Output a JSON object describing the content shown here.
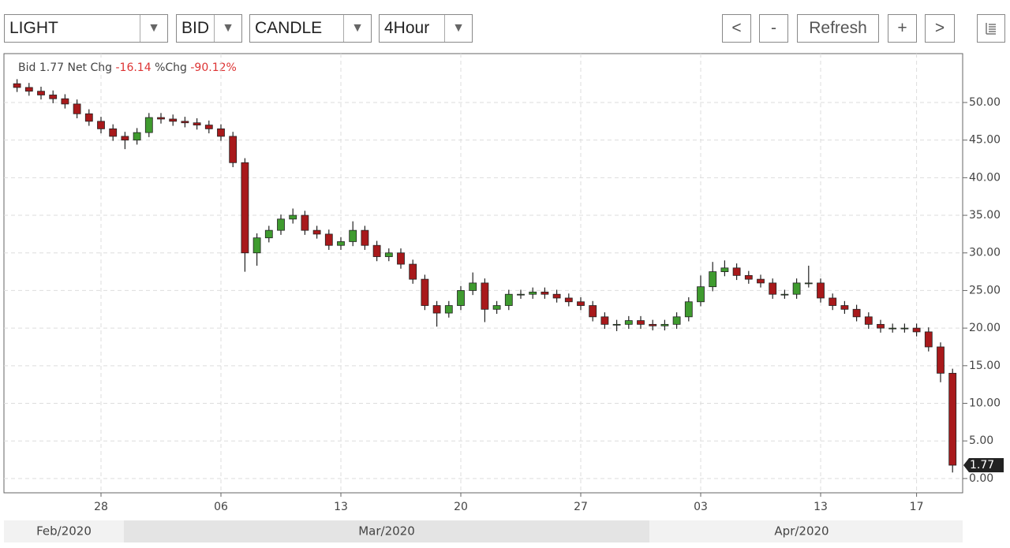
{
  "toolbar": {
    "symbol": "LIGHT",
    "side": "BID",
    "style": "CANDLE",
    "interval": "4Hour",
    "buttons": [
      "<",
      "-",
      "Refresh",
      "+",
      ">"
    ]
  },
  "chart_data": {
    "type": "candlestick",
    "info": {
      "bid_label": "Bid",
      "bid": "1.77",
      "chg_label": "Net Chg",
      "chg": "-16.14",
      "pct_label": "%Chg",
      "pct": "-90.12%"
    },
    "last_label": "1.77",
    "categories": [
      null,
      null,
      null,
      null,
      null,
      null,
      null,
      "28",
      null,
      null,
      null,
      null,
      null,
      null,
      null,
      null,
      null,
      "06",
      null,
      null,
      null,
      null,
      null,
      null,
      null,
      null,
      null,
      "13",
      null,
      null,
      null,
      null,
      null,
      null,
      null,
      null,
      null,
      "20",
      null,
      null,
      null,
      null,
      null,
      null,
      null,
      null,
      null,
      "27",
      null,
      null,
      null,
      null,
      null,
      null,
      null,
      null,
      null,
      "03",
      null,
      null,
      null,
      null,
      null,
      null,
      null,
      null,
      null,
      "13",
      null,
      null,
      null,
      null,
      null,
      null,
      null,
      "17",
      null,
      null,
      null
    ],
    "months": [
      "Feb/2020",
      "Mar/2020",
      "Apr/2020"
    ],
    "series": {
      "open": [
        52.5,
        52,
        51.5,
        51,
        50.5,
        49.8,
        48.5,
        47.5,
        46.5,
        45.5,
        45,
        46,
        48,
        47.8,
        47.5,
        47.3,
        47,
        46.5,
        45.5,
        42,
        30,
        32,
        33,
        34.5,
        35,
        33,
        32.5,
        31,
        31.5,
        33,
        31,
        29.5,
        30,
        28.5,
        26.5,
        23,
        22,
        23,
        25,
        26,
        22.5,
        23,
        24.5,
        24.5,
        24.8,
        24.5,
        24,
        23.5,
        23,
        21.5,
        20.5,
        20.5,
        21,
        20.5,
        20.3,
        20.5,
        21.5,
        23.5,
        25.5,
        27.5,
        28,
        27,
        26.5,
        26,
        24.5,
        24.5,
        26,
        26,
        24,
        23,
        22.5,
        21.5,
        20.5,
        20,
        20,
        20,
        19.5,
        17.5,
        14
      ],
      "high": [
        53.1,
        52.6,
        52.1,
        51.6,
        51.1,
        50.4,
        49.1,
        48.1,
        47.1,
        46.1,
        46.6,
        48.6,
        48.6,
        48.4,
        48.1,
        47.9,
        47.6,
        47.1,
        46.1,
        42.6,
        32.6,
        33.6,
        35.1,
        35.9,
        35.6,
        33.6,
        33.1,
        32.1,
        34.2,
        33.6,
        31.6,
        30.6,
        30.6,
        29.1,
        27.1,
        23.6,
        23.6,
        25.6,
        27.4,
        26.6,
        23.6,
        25.1,
        25.1,
        25.4,
        25.4,
        25.1,
        24.6,
        24.1,
        23.6,
        22.1,
        21.1,
        21.6,
        21.6,
        21.1,
        21.1,
        22.1,
        24.1,
        27,
        28.8,
        29,
        28.6,
        27.6,
        27.1,
        26.6,
        25.1,
        26.6,
        28.3,
        26.6,
        24.6,
        23.6,
        23.1,
        22.1,
        21.1,
        20.6,
        20.6,
        20.6,
        20.1,
        18.1,
        14.6
      ],
      "low": [
        51.4,
        50.9,
        50.4,
        49.9,
        49.2,
        47.9,
        46.9,
        45.9,
        44.9,
        43.8,
        44.4,
        45.4,
        47.2,
        46.9,
        46.7,
        46.4,
        45.9,
        44.9,
        41.4,
        27.5,
        28.3,
        31.4,
        32.4,
        33.9,
        32.4,
        31.9,
        30.4,
        30.4,
        30.9,
        30.4,
        28.9,
        28.9,
        27.9,
        25.9,
        22.4,
        20.2,
        21.4,
        22.4,
        24.4,
        20.8,
        21.9,
        22.4,
        23.9,
        23.9,
        23.9,
        23.4,
        22.9,
        22.4,
        20.9,
        19.9,
        19.6,
        19.9,
        19.9,
        19.7,
        19.7,
        19.9,
        20.9,
        22.9,
        24.9,
        26.9,
        26.4,
        25.9,
        25.4,
        23.9,
        23.9,
        23.9,
        25.4,
        23.4,
        22.4,
        21.9,
        20.9,
        19.9,
        19.4,
        19.4,
        19.4,
        18.9,
        16.9,
        12.8,
        0.8
      ],
      "close": [
        52,
        51.5,
        51,
        50.5,
        49.8,
        48.5,
        47.5,
        46.5,
        45.5,
        45,
        46,
        48,
        47.8,
        47.5,
        47.3,
        47,
        46.5,
        45.5,
        42,
        30,
        32,
        33,
        34.5,
        35,
        33,
        32.5,
        31,
        31.5,
        33,
        31,
        29.5,
        30,
        28.5,
        26.5,
        23,
        22,
        23,
        25,
        26,
        22.5,
        23,
        24.5,
        24.5,
        24.8,
        24.5,
        24,
        23.5,
        23,
        21.5,
        20.5,
        20.5,
        21,
        20.5,
        20.3,
        20.5,
        21.5,
        23.5,
        25.5,
        27.5,
        28,
        27,
        26.5,
        26,
        24.5,
        24.5,
        26,
        26,
        24,
        23,
        22.5,
        21.5,
        20.5,
        20,
        20,
        20,
        19.5,
        17.5,
        14,
        1.77
      ]
    },
    "up_color": "#3f9b2f",
    "down_color": "#a8191b",
    "ylim": [
      -1.9,
      56.5
    ],
    "yticks": [
      {
        "value": 0,
        "label": "0.00"
      },
      {
        "value": 5,
        "label": "5.00"
      },
      {
        "value": 10,
        "label": "10.00"
      },
      {
        "value": 15,
        "label": "15.00"
      },
      {
        "value": 20,
        "label": "20.00"
      },
      {
        "value": 25,
        "label": "25.00"
      },
      {
        "value": 30,
        "label": "30.00"
      },
      {
        "value": 35,
        "label": "35.00"
      },
      {
        "value": 40,
        "label": "40.00"
      },
      {
        "value": 45,
        "label": "45.00"
      },
      {
        "value": 50,
        "label": "50.00"
      }
    ],
    "grid": true
  }
}
